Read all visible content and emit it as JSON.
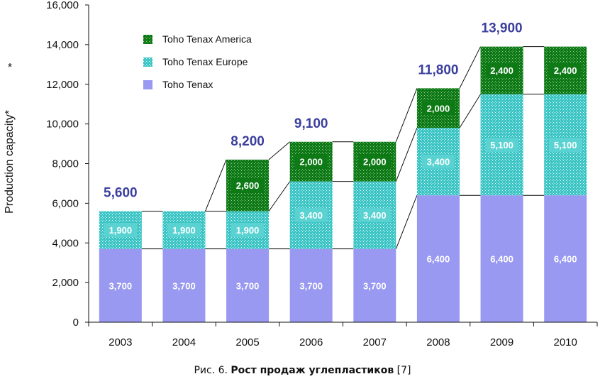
{
  "chart_data": {
    "type": "bar",
    "stacked": true,
    "categories": [
      "2003",
      "2004",
      "2005",
      "2006",
      "2007",
      "2008",
      "2009",
      "2010"
    ],
    "series": [
      {
        "name": "Toho Tenax",
        "values": [
          3700,
          3700,
          3700,
          3700,
          3700,
          6400,
          6400,
          6400
        ],
        "labels": [
          "3,700",
          "3,700",
          "3,700",
          "3,700",
          "3,700",
          "6,400",
          "6,400",
          "6,400"
        ],
        "color": "#9999f2"
      },
      {
        "name": "Toho Tenax Europe",
        "values": [
          1900,
          1900,
          1900,
          3400,
          3400,
          3400,
          5100,
          5100
        ],
        "labels": [
          "1,900",
          "1,900",
          "1,900",
          "3,400",
          "3,400",
          "3,400",
          "5,100",
          "5,100"
        ],
        "color": "#40c8c8"
      },
      {
        "name": "Toho Tenax America",
        "values": [
          0,
          0,
          2600,
          2000,
          2000,
          2000,
          2400,
          2400
        ],
        "labels": [
          "",
          "",
          "2,600",
          "2,000",
          "2,000",
          "2,000",
          "2,400",
          "2,400"
        ],
        "color": "#0f7a17"
      }
    ],
    "totals": [
      "5,600",
      "",
      "8,200",
      "9,100",
      "",
      "11,800",
      "13,900",
      ""
    ],
    "yticks": [
      "0",
      "2,000",
      "4,000",
      "6,000",
      "8,000",
      "10,000",
      "12,000",
      "14,000",
      "16,000"
    ],
    "ylim": [
      0,
      16000
    ],
    "ylabel": "Production capacity*",
    "ylabel_mark": "*",
    "legend": [
      "Toho Tenax America",
      "Toho Tenax Europe",
      "Toho Tenax"
    ],
    "legend_position": "top-left",
    "grid": false
  },
  "caption": {
    "prefix": "Рис. 6. ",
    "title": "Рост продаж углепластиков",
    "ref": " [7]"
  }
}
